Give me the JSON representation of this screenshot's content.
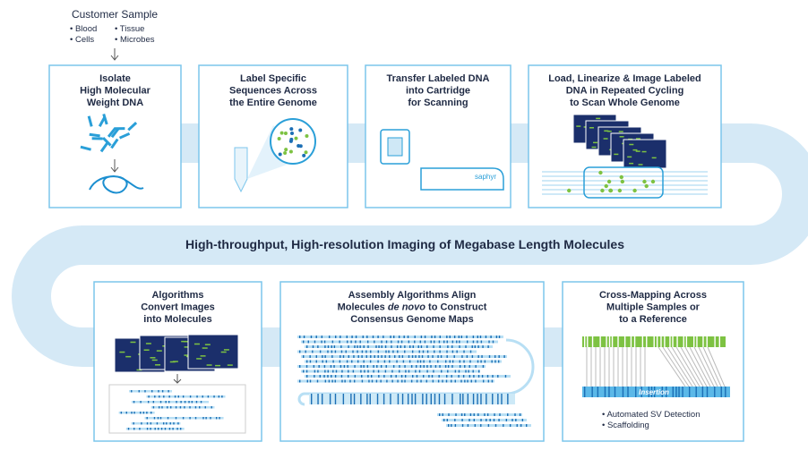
{
  "customer_sample": {
    "title": "Customer Sample",
    "items": [
      "• Blood",
      "• Cells",
      "• Tissue",
      "• Microbes"
    ]
  },
  "steps": [
    {
      "lines": [
        "Isolate",
        "High Molecular",
        "Weight DNA"
      ]
    },
    {
      "lines": [
        "Label Specific",
        "Sequences Across",
        "the Entire Genome"
      ]
    },
    {
      "lines": [
        "Transfer Labeled DNA",
        "into Cartridge",
        "for Scanning"
      ]
    },
    {
      "lines": [
        "Load, Linearize & Image Labeled",
        "DNA in Repeated Cycling",
        "to Scan Whole Genome"
      ]
    },
    {
      "lines": [
        "Algorithms",
        "Convert Images",
        "into Molecules"
      ]
    },
    {
      "lines": [
        "Assembly Algorithms Align",
        [
          "Molecules ",
          "de novo",
          " to Construct"
        ],
        "Consensus Genome Maps"
      ]
    },
    {
      "lines": [
        "Cross-Mapping Across",
        "Multiple Samples or",
        "to a Reference"
      ]
    }
  ],
  "device_label": "saphyr",
  "banner": "High-throughput, High-resolution Imaging of Megabase Length Molecules",
  "insertion_label": "Insertion",
  "cross_mapping_bullets": [
    "• Automated SV Detection",
    "• Scaffolding"
  ]
}
